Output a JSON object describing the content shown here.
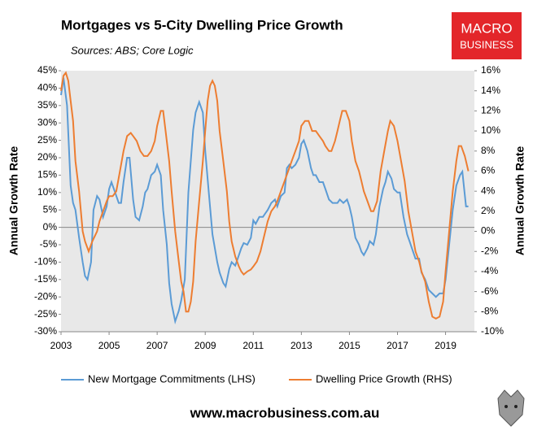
{
  "chart_data": {
    "type": "line",
    "title": "Mortgages vs 5-City Dwelling Price Growth",
    "subtitle": "Sources: ABS; Core Logic",
    "logo": [
      "MACRO",
      "BUSINESS"
    ],
    "website": "www.macrobusiness.com.au",
    "ylabel": "Annual Growth Rate",
    "y2label": "Annual Growth Rate",
    "xlim": [
      2003,
      2020.2
    ],
    "xticks": [
      2003,
      2005,
      2007,
      2009,
      2011,
      2013,
      2015,
      2017,
      2019
    ],
    "ylim": [
      -30,
      45
    ],
    "yticks": [
      {
        "value": -30,
        "label": "-30%"
      },
      {
        "value": -25,
        "label": "-25%"
      },
      {
        "value": -20,
        "label": "-20%"
      },
      {
        "value": -15,
        "label": "-15%"
      },
      {
        "value": -10,
        "label": "-10%"
      },
      {
        "value": -5,
        "label": "-5%"
      },
      {
        "value": 0,
        "label": "0%"
      },
      {
        "value": 5,
        "label": "5%"
      },
      {
        "value": 10,
        "label": "10%"
      },
      {
        "value": 15,
        "label": "15%"
      },
      {
        "value": 20,
        "label": "20%"
      },
      {
        "value": 25,
        "label": "25%"
      },
      {
        "value": 30,
        "label": "30%"
      },
      {
        "value": 35,
        "label": "35%"
      },
      {
        "value": 40,
        "label": "40%"
      },
      {
        "value": 45,
        "label": "45%"
      }
    ],
    "y2lim": [
      -10,
      16
    ],
    "y2ticks": [
      {
        "value": -10,
        "label": "-10%"
      },
      {
        "value": -8,
        "label": "-8%"
      },
      {
        "value": -6,
        "label": "-6%"
      },
      {
        "value": -4,
        "label": "-4%"
      },
      {
        "value": -2,
        "label": "-2%"
      },
      {
        "value": 0,
        "label": "0%"
      },
      {
        "value": 2,
        "label": "2%"
      },
      {
        "value": 4,
        "label": "4%"
      },
      {
        "value": 6,
        "label": "6%"
      },
      {
        "value": 8,
        "label": "8%"
      },
      {
        "value": 10,
        "label": "10%"
      },
      {
        "value": 12,
        "label": "12%"
      },
      {
        "value": 14,
        "label": "14%"
      },
      {
        "value": 16,
        "label": "16%"
      }
    ],
    "series": [
      {
        "name": "New Mortgage Commitments (LHS)",
        "color": "#5b9bd5",
        "x": [
          2003.0,
          2003.1,
          2003.25,
          2003.4,
          2003.5,
          2003.6,
          2003.75,
          2003.9,
          2004.0,
          2004.1,
          2004.25,
          2004.35,
          2004.5,
          2004.6,
          2004.75,
          2004.9,
          2005.0,
          2005.1,
          2005.25,
          2005.4,
          2005.5,
          2005.6,
          2005.75,
          2005.85,
          2006.0,
          2006.1,
          2006.25,
          2006.4,
          2006.5,
          2006.6,
          2006.75,
          2006.9,
          2007.0,
          2007.15,
          2007.25,
          2007.4,
          2007.5,
          2007.6,
          2007.75,
          2007.9,
          2008.0,
          2008.15,
          2008.3,
          2008.5,
          2008.6,
          2008.75,
          2008.9,
          2009.0,
          2009.15,
          2009.3,
          2009.5,
          2009.6,
          2009.75,
          2009.85,
          2010.0,
          2010.1,
          2010.25,
          2010.4,
          2010.5,
          2010.6,
          2010.75,
          2010.9,
          2011.0,
          2011.1,
          2011.25,
          2011.4,
          2011.5,
          2011.6,
          2011.75,
          2011.9,
          2012.0,
          2012.15,
          2012.3,
          2012.4,
          2012.5,
          2012.6,
          2012.75,
          2012.9,
          2013.0,
          2013.1,
          2013.25,
          2013.4,
          2013.5,
          2013.6,
          2013.75,
          2013.9,
          2014.0,
          2014.15,
          2014.3,
          2014.5,
          2014.6,
          2014.75,
          2014.9,
          2015.0,
          2015.1,
          2015.25,
          2015.4,
          2015.5,
          2015.6,
          2015.75,
          2015.85,
          2016.0,
          2016.1,
          2016.25,
          2016.4,
          2016.5,
          2016.6,
          2016.75,
          2016.85,
          2017.0,
          2017.1,
          2017.25,
          2017.4,
          2017.5,
          2017.6,
          2017.75,
          2017.9,
          2018.0,
          2018.15,
          2018.3,
          2018.45,
          2018.6,
          2018.75,
          2018.9,
          2019.0,
          2019.15,
          2019.3,
          2019.45,
          2019.6,
          2019.7,
          2019.85,
          2019.95
        ],
        "values": [
          38,
          43,
          35,
          12,
          7,
          5,
          -3,
          -10,
          -14,
          -15,
          -10,
          5,
          9,
          8,
          3,
          6,
          11,
          13,
          10,
          7,
          7,
          13,
          20,
          20,
          8,
          3,
          2,
          6,
          10,
          11,
          15,
          16,
          18,
          15,
          5,
          -5,
          -16,
          -22,
          -27,
          -24,
          -21,
          -15,
          10,
          28,
          33,
          36,
          33,
          22,
          10,
          -2,
          -10,
          -13,
          -16,
          -17,
          -12,
          -10,
          -11,
          -8,
          -6,
          -4.5,
          -5,
          -3,
          2,
          1,
          3,
          3,
          4,
          5,
          7,
          8,
          6,
          9,
          10,
          17,
          18,
          17,
          18,
          20,
          24,
          25,
          22,
          17,
          15,
          15,
          13,
          13,
          11,
          8,
          7,
          7,
          8,
          7,
          8,
          6,
          3,
          -3,
          -5,
          -7,
          -8,
          -6,
          -4,
          -5,
          -2,
          6,
          11,
          13,
          16,
          14,
          11,
          10,
          10,
          3,
          -2,
          -4,
          -6,
          -9,
          -9,
          -13,
          -15,
          -18,
          -19,
          -20,
          -19,
          -19,
          -15,
          -5,
          5,
          12,
          15,
          16,
          6,
          6
        ]
      },
      {
        "name": "Dwelling Price Growth (RHS)",
        "color": "#ed7d31",
        "axis": "y2",
        "x": [
          2003.0,
          2003.1,
          2003.2,
          2003.3,
          2003.4,
          2003.5,
          2003.6,
          2003.75,
          2003.9,
          2004.0,
          2004.15,
          2004.3,
          2004.5,
          2004.6,
          2004.75,
          2004.9,
          2005.0,
          2005.15,
          2005.3,
          2005.45,
          2005.6,
          2005.75,
          2005.9,
          2006.0,
          2006.15,
          2006.3,
          2006.45,
          2006.6,
          2006.75,
          2006.9,
          2007.0,
          2007.15,
          2007.25,
          2007.35,
          2007.5,
          2007.6,
          2007.75,
          2007.9,
          2008.0,
          2008.1,
          2008.2,
          2008.3,
          2008.4,
          2008.5,
          2008.6,
          2008.75,
          2008.9,
          2009.0,
          2009.1,
          2009.2,
          2009.3,
          2009.4,
          2009.5,
          2009.6,
          2009.75,
          2009.9,
          2010.0,
          2010.1,
          2010.25,
          2010.4,
          2010.5,
          2010.6,
          2010.75,
          2010.9,
          2011.0,
          2011.15,
          2011.3,
          2011.5,
          2011.6,
          2011.75,
          2011.9,
          2012.0,
          2012.15,
          2012.3,
          2012.45,
          2012.6,
          2012.75,
          2012.9,
          2013.0,
          2013.15,
          2013.3,
          2013.45,
          2013.6,
          2013.75,
          2013.9,
          2014.0,
          2014.15,
          2014.25,
          2014.4,
          2014.5,
          2014.6,
          2014.7,
          2014.85,
          2015.0,
          2015.1,
          2015.25,
          2015.4,
          2015.5,
          2015.6,
          2015.75,
          2015.9,
          2016.0,
          2016.15,
          2016.3,
          2016.45,
          2016.6,
          2016.7,
          2016.85,
          2017.0,
          2017.15,
          2017.3,
          2017.45,
          2017.6,
          2017.75,
          2017.9,
          2018.0,
          2018.15,
          2018.3,
          2018.45,
          2018.6,
          2018.75,
          2018.9,
          2019.0,
          2019.15,
          2019.3,
          2019.45,
          2019.55,
          2019.65,
          2019.8,
          2019.95
        ],
        "values": [
          14,
          15.5,
          15.8,
          15,
          13,
          11,
          7,
          4,
          0,
          -1,
          -2,
          -1,
          0,
          1,
          2,
          3,
          3.5,
          3.5,
          4,
          6,
          8,
          9.5,
          9.8,
          9.5,
          9,
          8,
          7.5,
          7.5,
          8,
          9,
          10.5,
          12,
          12,
          10,
          7,
          4,
          0,
          -3,
          -5,
          -6,
          -8,
          -8,
          -7,
          -5,
          -1,
          3,
          7,
          10,
          13,
          14.5,
          15,
          14.5,
          13,
          10,
          7,
          4,
          1,
          -1,
          -2.5,
          -3.5,
          -4,
          -4.3,
          -4,
          -3.8,
          -3.5,
          -3,
          -2,
          0,
          1,
          2,
          2.5,
          3,
          4,
          5,
          6,
          7,
          8,
          9,
          10.5,
          11,
          11,
          10,
          10,
          9.5,
          9,
          8.5,
          8,
          8,
          9,
          10,
          11,
          12,
          12,
          11,
          9,
          7,
          6,
          5,
          4,
          3,
          2,
          2,
          3,
          6,
          8,
          10,
          11,
          10.5,
          9,
          7,
          5,
          2,
          0,
          -2,
          -3,
          -4,
          -5,
          -7,
          -8.5,
          -8.7,
          -8.5,
          -7,
          -4,
          0,
          4,
          7,
          8.5,
          8.5,
          7.5,
          6
        ]
      }
    ]
  }
}
